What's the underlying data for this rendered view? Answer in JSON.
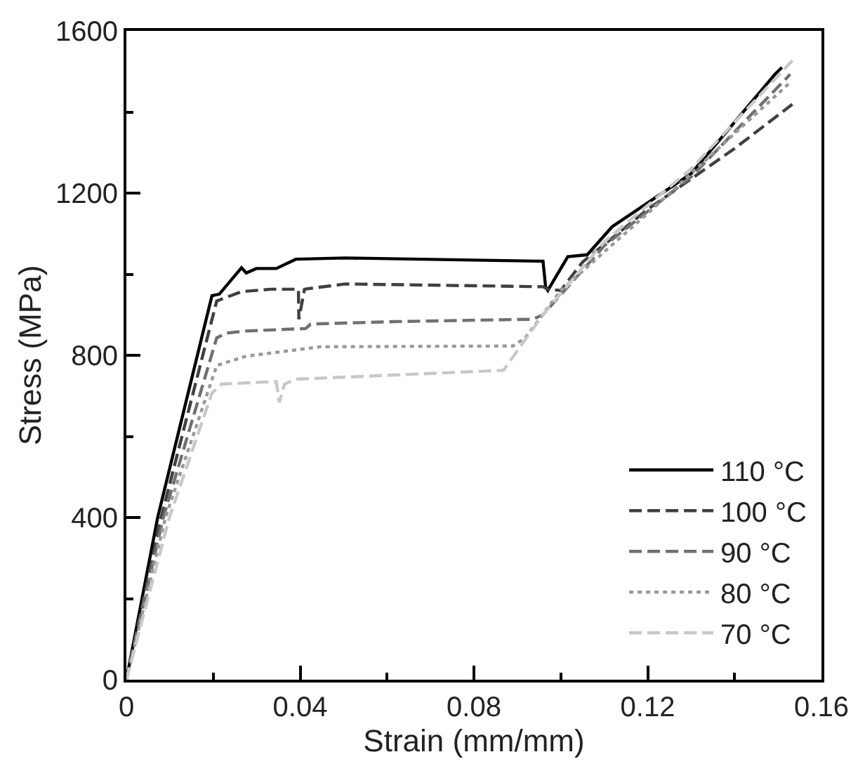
{
  "chart_data": {
    "type": "line",
    "xlabel": "Strain (mm/mm)",
    "ylabel": "Stress (MPa)",
    "xlim": [
      0,
      0.16
    ],
    "xticks": [
      0,
      0.04,
      0.08,
      0.12,
      0.16
    ],
    "ylim": [
      0,
      1600
    ],
    "yticks": [
      0,
      400,
      800,
      1200,
      1600
    ],
    "legend": "bottom right",
    "marker": "none",
    "series": [
      {
        "name": "110 °C",
        "color": "#000000",
        "line_style": "solid",
        "x": [
          0,
          0.0072,
          0.0197,
          0.0214,
          0.0265,
          0.0276,
          0.0299,
          0.0345,
          0.039,
          0.0504,
          0.0959,
          0.0965,
          0.097,
          0.1016,
          0.1061,
          0.1118,
          0.13,
          0.1493,
          0.1509
        ],
        "values": [
          0,
          400,
          947,
          951,
          1016,
          1003,
          1014,
          1014,
          1037,
          1040,
          1032,
          969,
          960,
          1043,
          1048,
          1117,
          1248,
          1493,
          1510
        ]
      },
      {
        "name": "100 °C",
        "color": "#404040",
        "line_style": "dashed",
        "x": [
          0,
          0.008,
          0.0208,
          0.0265,
          0.0333,
          0.0396,
          0.0397,
          0.041,
          0.0504,
          0.0959,
          0.097,
          0.1,
          0.105,
          0.12,
          0.14,
          0.1533
        ],
        "values": [
          0,
          400,
          934,
          957,
          963,
          963,
          889,
          963,
          976,
          969,
          963,
          960,
          1030,
          1160,
          1310,
          1419
        ]
      },
      {
        "name": "90 °C",
        "color": "#707070",
        "line_style": "dashed",
        "x": [
          0,
          0.0085,
          0.0208,
          0.0231,
          0.0276,
          0.0413,
          0.0424,
          0.0618,
          0.0936,
          0.0959,
          0.11,
          0.13,
          0.1528
        ],
        "values": [
          0,
          400,
          843,
          855,
          860,
          866,
          877,
          883,
          889,
          900,
          1070,
          1240,
          1493
        ]
      },
      {
        "name": "80 °C",
        "color": "#999999",
        "line_style": "dotted",
        "x": [
          0,
          0.009,
          0.0208,
          0.0276,
          0.0447,
          0.089,
          0.0918,
          0.1,
          0.12,
          0.1525
        ],
        "values": [
          0,
          400,
          775,
          798,
          821,
          823,
          843,
          960,
          1150,
          1470
        ]
      },
      {
        "name": "70 °C",
        "color": "#c8c8c8",
        "line_style": "dashed",
        "x": [
          0,
          0.0099,
          0.0197,
          0.0219,
          0.0333,
          0.0345,
          0.0352,
          0.0364,
          0.039,
          0.0868,
          0.0959,
          0.11,
          0.13,
          0.1533
        ],
        "values": [
          0,
          400,
          707,
          729,
          735,
          735,
          684,
          729,
          741,
          763,
          900,
          1080,
          1260,
          1527
        ]
      }
    ]
  }
}
